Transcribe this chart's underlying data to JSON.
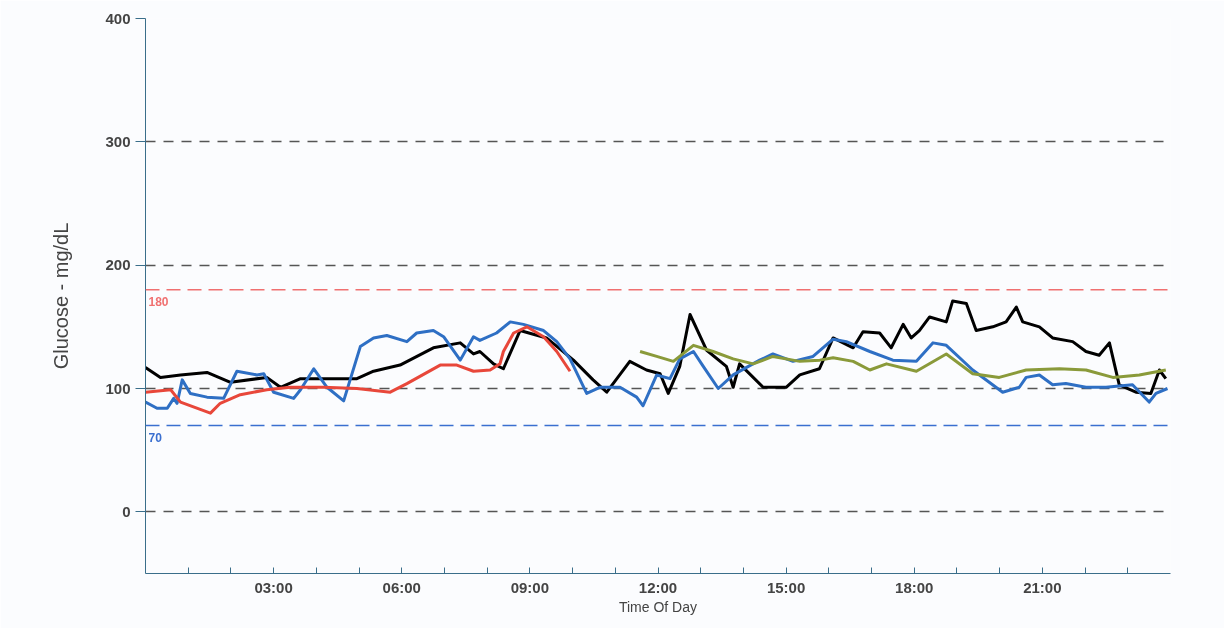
{
  "chart_data": {
    "type": "line",
    "xlabel": "Time Of Day",
    "ylabel": "Glucose - mg/dL",
    "xlim": [
      0,
      24
    ],
    "ylim": [
      -50,
      400
    ],
    "xticks": [
      {
        "value": 1,
        "label": null
      },
      {
        "value": 2,
        "label": null
      },
      {
        "value": 3,
        "label": "03:00"
      },
      {
        "value": 4,
        "label": null
      },
      {
        "value": 5,
        "label": null
      },
      {
        "value": 6,
        "label": "06:00"
      },
      {
        "value": 7,
        "label": null
      },
      {
        "value": 8,
        "label": null
      },
      {
        "value": 9,
        "label": "09:00"
      },
      {
        "value": 10,
        "label": null
      },
      {
        "value": 11,
        "label": null
      },
      {
        "value": 12,
        "label": "12:00"
      },
      {
        "value": 13,
        "label": null
      },
      {
        "value": 14,
        "label": null
      },
      {
        "value": 15,
        "label": "15:00"
      },
      {
        "value": 16,
        "label": null
      },
      {
        "value": 17,
        "label": null
      },
      {
        "value": 18,
        "label": "18:00"
      },
      {
        "value": 19,
        "label": null
      },
      {
        "value": 20,
        "label": null
      },
      {
        "value": 21,
        "label": "21:00"
      },
      {
        "value": 22,
        "label": null
      },
      {
        "value": 23,
        "label": null
      }
    ],
    "yticks": [
      0,
      100,
      200,
      300,
      400
    ],
    "grid": "y",
    "line_style": "solid",
    "marker": "none",
    "ref_lines": [
      {
        "axis": "y",
        "value": 180,
        "label": "180",
        "color": "#f07070",
        "line_style": "dashed"
      },
      {
        "axis": "y",
        "value": 70,
        "label": "70",
        "color": "#3a6fd0",
        "line_style": "dashed"
      }
    ],
    "series": [
      {
        "color": "#000000",
        "x": [
          0,
          0.35,
          0.82,
          1.44,
          1.99,
          2.84,
          3.16,
          3.63,
          4.25,
          4.95,
          5.34,
          5.96,
          6.74,
          7.37,
          7.68,
          7.83,
          8.15,
          8.38,
          8.77,
          9.39,
          10.02,
          10.48,
          10.8,
          11.34,
          11.73,
          12.05,
          12.24,
          12.51,
          12.75,
          13.14,
          13.6,
          13.76,
          13.91,
          14.46,
          15.0,
          15.32,
          15.78,
          16.1,
          16.57,
          16.8,
          17.19,
          17.46,
          17.74,
          17.93,
          18.12,
          18.36,
          18.75,
          18.9,
          19.22,
          19.45,
          19.84,
          20.15,
          20.39,
          20.54,
          20.93,
          21.24,
          21.71,
          22.02,
          22.33,
          22.57,
          22.8,
          23.19,
          23.54,
          23.74,
          23.89
        ],
        "values": [
          117,
          109,
          111,
          113,
          105,
          109,
          101,
          108,
          108,
          108,
          114,
          119,
          133,
          137,
          128,
          130,
          120,
          116,
          147,
          141,
          123,
          107,
          97,
          122,
          115,
          112,
          96,
          118,
          160,
          131,
          118,
          101,
          120,
          101,
          101,
          111,
          116,
          141,
          133,
          146,
          145,
          133,
          152,
          141,
          147,
          158,
          154,
          171,
          169,
          147,
          150,
          154,
          166,
          154,
          150,
          141,
          138,
          130,
          127,
          137,
          103,
          97,
          96,
          115,
          108
        ]
      },
      {
        "color": "#2e6fc4",
        "x": [
          0,
          0.27,
          0.51,
          0.66,
          0.74,
          0.86,
          1.05,
          1.44,
          1.83,
          2.14,
          2.61,
          2.77,
          3.0,
          3.47,
          3.63,
          3.94,
          4.25,
          4.64,
          5.03,
          5.34,
          5.65,
          6.12,
          6.35,
          6.74,
          6.98,
          7.37,
          7.68,
          7.83,
          8.22,
          8.54,
          8.85,
          9.32,
          9.63,
          9.94,
          10.33,
          10.64,
          11.11,
          11.5,
          11.65,
          11.97,
          12.28,
          12.51,
          12.83,
          13.06,
          13.41,
          13.76,
          14.38,
          14.69,
          15.16,
          15.63,
          16.1,
          16.41,
          16.96,
          17.5,
          18.05,
          18.44,
          18.75,
          19.37,
          20.07,
          20.46,
          20.62,
          20.93,
          21.24,
          21.55,
          22.02,
          22.49,
          23.11,
          23.5,
          23.66,
          23.93
        ],
        "values": [
          89,
          84,
          84,
          92,
          88,
          107,
          96,
          93,
          92,
          114,
          111,
          112,
          97,
          92,
          99,
          116,
          101,
          90,
          134,
          141,
          143,
          138,
          145,
          147,
          142,
          123,
          142,
          139,
          145,
          154,
          152,
          147,
          138,
          124,
          96,
          101,
          101,
          93,
          86,
          111,
          108,
          124,
          130,
          118,
          100,
          111,
          123,
          128,
          122,
          126,
          140,
          138,
          130,
          123,
          122,
          137,
          135,
          115,
          97,
          101,
          109,
          111,
          103,
          104,
          101,
          101,
          103,
          89,
          96,
          100
        ]
      },
      {
        "color": "#e8473a",
        "x": [
          0,
          0.59,
          0.82,
          1.52,
          1.75,
          2.22,
          2.84,
          3.39,
          4.17,
          4.95,
          5.73,
          6.12,
          6.9,
          7.29,
          7.68,
          8.07,
          8.3,
          8.38,
          8.62,
          8.93,
          9.32,
          9.63,
          9.94
        ],
        "values": [
          97,
          99,
          89,
          80,
          88,
          95,
          99,
          101,
          101,
          100,
          97,
          104,
          119,
          119,
          114,
          115,
          120,
          130,
          145,
          150,
          142,
          130,
          114
        ]
      },
      {
        "color": "#8a9a3a",
        "x": [
          11.58,
          11.97,
          12.36,
          12.83,
          13.29,
          13.76,
          14.23,
          14.69,
          15.32,
          15.79,
          16.1,
          16.57,
          16.96,
          17.35,
          18.05,
          18.75,
          19.37,
          19.99,
          20.62,
          21.4,
          22.02,
          22.65,
          23.27,
          23.89
        ],
        "values": [
          130,
          126,
          122,
          135,
          130,
          124,
          120,
          126,
          122,
          123,
          125,
          122,
          115,
          120,
          114,
          128,
          112,
          109,
          115,
          116,
          115,
          109,
          111,
          115
        ]
      }
    ]
  }
}
